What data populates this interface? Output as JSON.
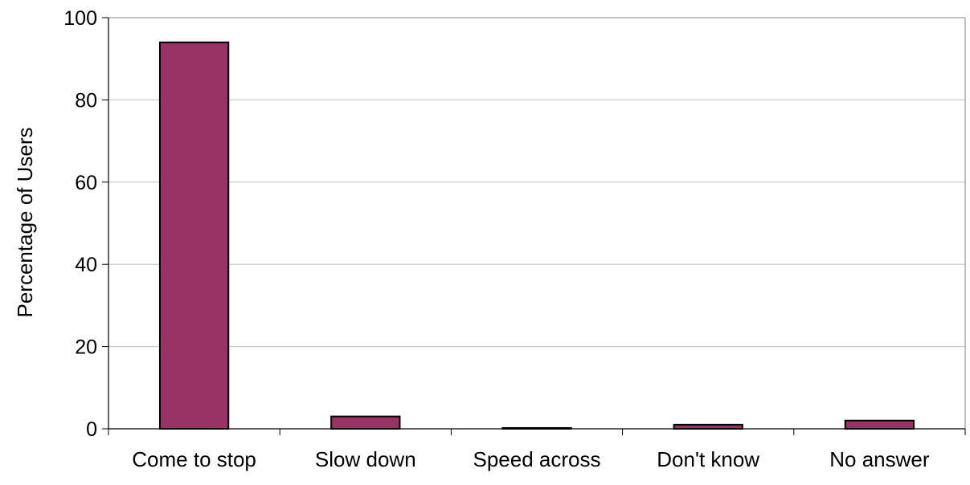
{
  "chart_data": {
    "type": "bar",
    "title": "",
    "xlabel": "",
    "ylabel": "Percentage of Users",
    "categories": [
      "Come to stop",
      "Slow down",
      "Speed across",
      "Don't know",
      "No answer"
    ],
    "values": [
      94,
      3,
      0.2,
      1,
      2
    ],
    "ylim": [
      0,
      100
    ],
    "yticks": [
      0,
      20,
      40,
      60,
      80,
      100
    ],
    "grid": true,
    "legend": "none",
    "colors": {
      "bar": "#993366",
      "bar_outline": "#000000",
      "gridline": "#c0c0c0",
      "axis": "#808080"
    }
  }
}
